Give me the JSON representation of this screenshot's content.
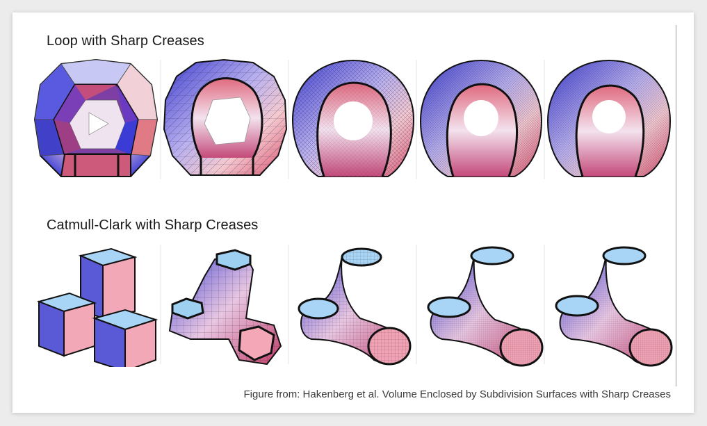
{
  "rows": [
    {
      "title": "Loop with Sharp Creases"
    },
    {
      "title": "Catmull-Clark with Sharp Creases"
    }
  ],
  "caption": "Figure from:  Hakenberg et al. Volume Enclosed by Subdivision Surfaces with Sharp Creases",
  "colors": {
    "blue": "#5a5ae0",
    "pink": "#e06a8a",
    "light_blue": "#a8d4f5",
    "crease": "#000000"
  }
}
